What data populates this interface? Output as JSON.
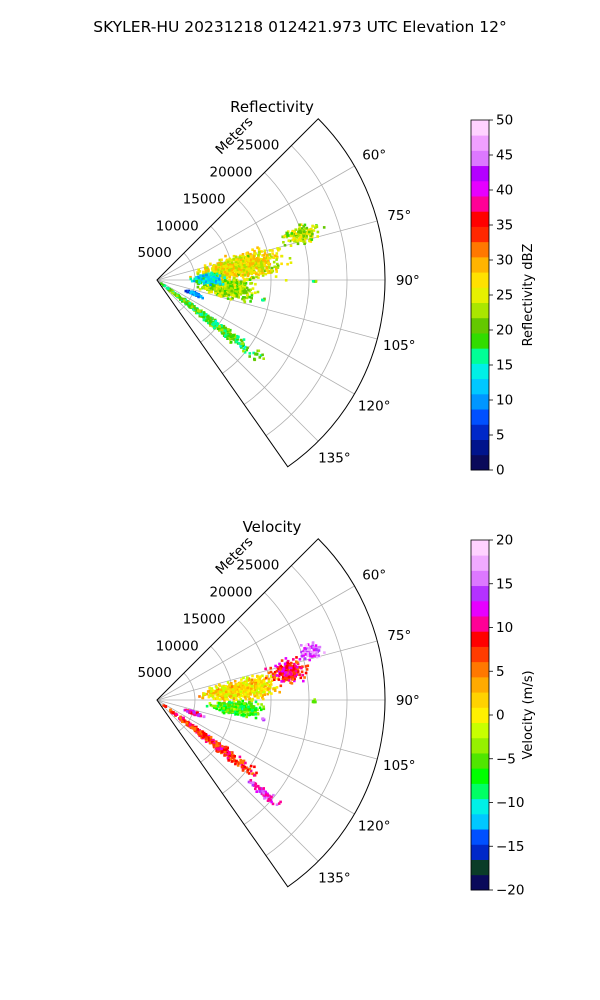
{
  "suptitle": "SKYLER-HU  20231218  012421.973 UTC Elevation 12°",
  "chart_data": [
    {
      "type": "heatmap",
      "projection": "polar-sector",
      "title": "Reflectivity",
      "radial_label": "Meters",
      "radial_ticks": [
        "5000",
        "10000",
        "15000",
        "20000",
        "25000"
      ],
      "radial_tick_values": [
        5000,
        10000,
        15000,
        20000,
        25000
      ],
      "r_max": 30000,
      "theta_range": [
        45,
        145
      ],
      "angle_tick_values": [
        60,
        75,
        90,
        105,
        120,
        135
      ],
      "angle_ticks": [
        "60°",
        "75°",
        "90°",
        "105°",
        "120°",
        "135°"
      ],
      "grid": true,
      "colorbar": {
        "label": "Reflectivity dBZ",
        "min": 0,
        "max": 50,
        "tick_values": [
          0,
          5,
          10,
          15,
          20,
          25,
          30,
          35,
          40,
          45,
          50
        ],
        "ticks": [
          "0",
          "5",
          "10",
          "15",
          "20",
          "25",
          "30",
          "35",
          "40",
          "45",
          "50"
        ],
        "colors": [
          "#0a0a5a",
          "#00148c",
          "#0028c8",
          "#0050ff",
          "#0096ff",
          "#00c8ff",
          "#00f0e6",
          "#00ff96",
          "#32dc00",
          "#64c800",
          "#aae600",
          "#e6f000",
          "#ffe100",
          "#ffb400",
          "#ff7800",
          "#ff2800",
          "#ff0000",
          "#ff0096",
          "#e600ff",
          "#b400ff",
          "#dc78ff",
          "#f0a0ff",
          "#ffd2ff"
        ]
      },
      "echoes": [
        {
          "theta": 80,
          "r": 11000,
          "dtheta": 14,
          "dr": 9000,
          "value": 26
        },
        {
          "theta": 72,
          "r": 20000,
          "dtheta": 6,
          "dr": 4000,
          "value": 23
        },
        {
          "theta": 96,
          "r": 9000,
          "dtheta": 12,
          "dr": 6000,
          "value": 22
        },
        {
          "theta": 88,
          "r": 6500,
          "dtheta": 10,
          "dr": 3000,
          "value": 14
        },
        {
          "theta": 127,
          "r": 8500,
          "dtheta": 5,
          "dr": 14000,
          "value": 19
        },
        {
          "theta": 109,
          "r": 5000,
          "dtheta": 4,
          "dr": 2000,
          "value": 9
        },
        {
          "theta": 90,
          "r": 20500,
          "dtheta": 1,
          "dr": 400,
          "value": 20
        },
        {
          "theta": 100,
          "r": 14000,
          "dtheta": 1,
          "dr": 400,
          "value": 18
        }
      ]
    },
    {
      "type": "heatmap",
      "projection": "polar-sector",
      "title": "Velocity",
      "radial_label": "Meters",
      "radial_ticks": [
        "5000",
        "10000",
        "15000",
        "20000",
        "25000"
      ],
      "radial_tick_values": [
        5000,
        10000,
        15000,
        20000,
        25000
      ],
      "r_max": 30000,
      "theta_range": [
        45,
        145
      ],
      "angle_tick_values": [
        60,
        75,
        90,
        105,
        120,
        135
      ],
      "angle_ticks": [
        "60°",
        "75°",
        "90°",
        "105°",
        "120°",
        "135°"
      ],
      "grid": true,
      "colorbar": {
        "label": "Velocity (m/s)",
        "min": -20,
        "max": 20,
        "tick_values": [
          -20,
          -15,
          -10,
          -5,
          0,
          5,
          10,
          15,
          20
        ],
        "ticks": [
          "−20",
          "−15",
          "−10",
          "−5",
          "0",
          "5",
          "10",
          "15",
          "20"
        ],
        "colors": [
          "#0a0a5a",
          "#0a3c28",
          "#0028c8",
          "#0050ff",
          "#00c8ff",
          "#00f0e6",
          "#00ff64",
          "#00ff00",
          "#50e600",
          "#96f000",
          "#c8ff00",
          "#fff000",
          "#ffd200",
          "#ffaa00",
          "#ff7800",
          "#ff3c00",
          "#ff0000",
          "#ff0096",
          "#e600ff",
          "#b432ff",
          "#dc78ff",
          "#f0aaff",
          "#ffd2ff"
        ]
      },
      "echoes": [
        {
          "theta": 82,
          "r": 11000,
          "dtheta": 12,
          "dr": 8000,
          "value": 1
        },
        {
          "theta": 95,
          "r": 10500,
          "dtheta": 8,
          "dr": 6000,
          "value": -6
        },
        {
          "theta": 77,
          "r": 17500,
          "dtheta": 8,
          "dr": 4000,
          "value": 9
        },
        {
          "theta": 72,
          "r": 21000,
          "dtheta": 5,
          "dr": 3000,
          "value": 15
        },
        {
          "theta": 127,
          "r": 8000,
          "dtheta": 5,
          "dr": 12000,
          "value": 8
        },
        {
          "theta": 131,
          "r": 18500,
          "dtheta": 3,
          "dr": 4000,
          "value": 13
        },
        {
          "theta": 108,
          "r": 5000,
          "dtheta": 4,
          "dr": 2000,
          "value": 12
        },
        {
          "theta": 90,
          "r": 20500,
          "dtheta": 1,
          "dr": 400,
          "value": -6
        },
        {
          "theta": 100,
          "r": 14000,
          "dtheta": 1,
          "dr": 400,
          "value": 14
        }
      ]
    }
  ]
}
